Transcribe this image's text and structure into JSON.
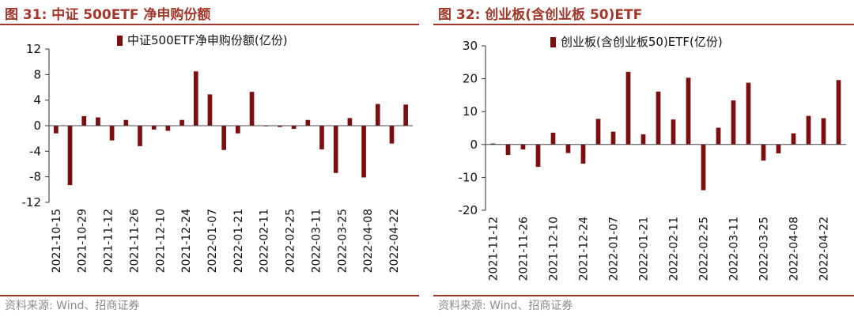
{
  "left_panel": {
    "title": "图 31:  中证 500ETF 净申购份额",
    "source": "资料来源:  Wind、招商证券",
    "color": "#7b0e0e"
  },
  "right_panel": {
    "title": "图 32:  创业板(含创业板 50)ETF",
    "source": "资料来源:  Wind、招商证券",
    "color": "#7b0e0e"
  },
  "chart_data": [
    {
      "type": "bar",
      "title": "图 31:  中证 500ETF 净申购份额",
      "series_name": "中证500ETF净申购份额(亿份)",
      "ylim": [
        -12,
        12
      ],
      "yticks": [
        12,
        8,
        4,
        0,
        -4,
        -8,
        -12
      ],
      "tick_labels": [
        "2021-10-15",
        "2021-10-29",
        "2021-11-12",
        "2021-11-26",
        "2021-12-10",
        "2021-12-24",
        "2022-01-07",
        "2022-01-21",
        "2022-02-11",
        "2022-02-25",
        "2022-03-11",
        "2022-03-25",
        "2022-04-08",
        "2022-04-22"
      ],
      "values": [
        -1.2,
        -9.3,
        1.5,
        1.3,
        -2.3,
        0.9,
        -3.2,
        -0.6,
        -0.8,
        0.9,
        8.5,
        4.9,
        -3.8,
        -1.2,
        5.3,
        -0.1,
        -0.2,
        -0.5,
        0.9,
        -3.7,
        -7.4,
        1.2,
        -8.1,
        3.4,
        -2.8,
        3.3
      ],
      "legend": "top"
    },
    {
      "type": "bar",
      "title": "图 32:  创业板(含创业板 50)ETF",
      "series_name": "创业板(含创业板50)ETF(亿份)",
      "ylim": [
        -20,
        30
      ],
      "yticks": [
        30,
        20,
        10,
        0,
        -10,
        -20
      ],
      "tick_labels": [
        "2021-11-12",
        "2021-11-26",
        "2021-12-10",
        "2021-12-24",
        "2022-01-07",
        "2022-01-21",
        "2022-02-11",
        "2022-02-25",
        "2022-03-11",
        "2022-03-25",
        "2022-04-08",
        "2022-04-22"
      ],
      "values": [
        0.3,
        -3.2,
        -1.5,
        -6.8,
        3.6,
        -2.6,
        -5.8,
        7.8,
        3.9,
        22.1,
        3.1,
        16.1,
        7.6,
        20.3,
        -13.9,
        5.1,
        13.4,
        18.8,
        -4.9,
        -2.7,
        3.4,
        8.7,
        8.0,
        19.6
      ],
      "legend": "top"
    }
  ]
}
